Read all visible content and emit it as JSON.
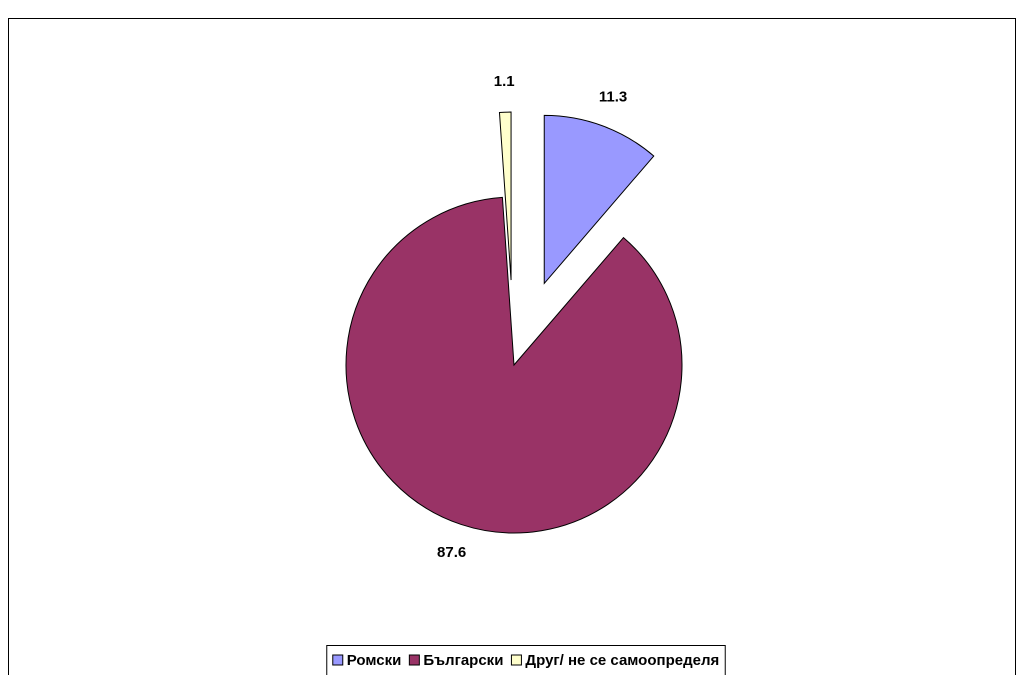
{
  "chart_data": {
    "type": "pie",
    "categories": [
      "Ромски",
      "Български",
      "Друг/ не се самоопределя"
    ],
    "values": [
      11.3,
      87.6,
      1.1
    ],
    "colors": [
      "#9999ff",
      "#993366",
      "#ffffcc"
    ],
    "legend": "bottom"
  }
}
